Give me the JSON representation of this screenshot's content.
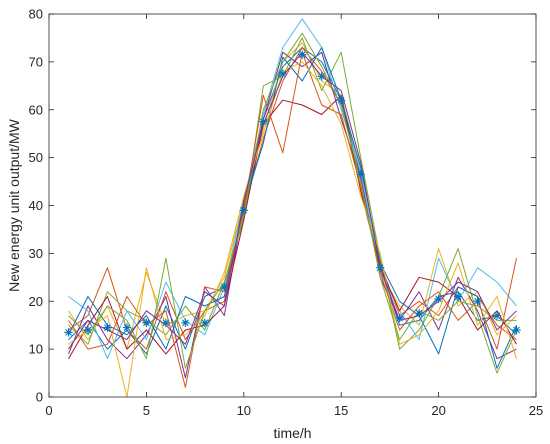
{
  "chart_data": {
    "type": "line",
    "xlabel": "time/h",
    "ylabel": "New energy unit output/MW",
    "xlim": [
      0,
      25
    ],
    "ylim": [
      0,
      80
    ],
    "xticks": [
      "0",
      "5",
      "10",
      "15",
      "20",
      "25"
    ],
    "yticks": [
      "0",
      "10",
      "20",
      "30",
      "40",
      "50",
      "60",
      "70",
      "80"
    ],
    "grid": false,
    "box": true,
    "x": [
      1,
      2,
      3,
      4,
      5,
      6,
      7,
      8,
      9,
      10,
      11,
      12,
      13,
      14,
      15,
      16,
      17,
      18,
      19,
      20,
      21,
      22,
      23,
      24
    ],
    "series": [
      {
        "color": "#0072BD",
        "values": [
          12,
          16,
          10,
          14,
          9,
          19,
          10,
          21,
          23,
          38,
          58,
          69,
          73,
          70,
          62,
          46,
          27,
          15,
          16,
          21,
          22,
          16,
          17,
          13
        ]
      },
      {
        "color": "#D95319",
        "values": [
          14,
          17,
          27,
          14,
          10,
          22,
          12,
          18,
          20,
          39,
          54,
          66,
          73,
          68,
          61,
          45,
          28,
          17,
          20,
          17,
          23,
          21,
          15,
          12
        ]
      },
      {
        "color": "#EDB120",
        "values": [
          18,
          12,
          19,
          10,
          26,
          15,
          17,
          18,
          25,
          41,
          56,
          70,
          74,
          66,
          63,
          47,
          26,
          19,
          15,
          31,
          19,
          22,
          13,
          17
        ]
      },
      {
        "color": "#7E2F8E",
        "values": [
          9,
          19,
          12,
          8,
          13,
          21,
          4,
          23,
          17,
          40,
          58,
          72,
          69,
          72,
          58,
          46,
          25,
          16,
          22,
          14,
          25,
          18,
          8,
          10
        ]
      },
      {
        "color": "#77AC30",
        "values": [
          15,
          11,
          22,
          18,
          16,
          13,
          19,
          14,
          24,
          37,
          65,
          67,
          75,
          64,
          72,
          50,
          29,
          10,
          14,
          21,
          31,
          17,
          5,
          14
        ]
      },
      {
        "color": "#4DBEEE",
        "values": [
          21,
          18,
          8,
          18,
          12,
          24,
          16,
          13,
          23,
          41,
          59,
          73,
          79,
          73,
          60,
          47,
          26,
          18,
          12,
          29,
          20,
          27,
          24,
          19
        ]
      },
      {
        "color": "#A2142F",
        "values": [
          8,
          15,
          21,
          10,
          14,
          9,
          14,
          15,
          19,
          37,
          57,
          62,
          61,
          59,
          63,
          43,
          27,
          18,
          25,
          24,
          21,
          14,
          18,
          11
        ]
      },
      {
        "color": "#0072BD",
        "values": [
          13,
          21,
          15,
          13,
          17,
          10,
          21,
          19,
          21,
          40,
          53,
          71,
          66,
          73,
          62,
          48,
          28,
          20,
          17,
          9,
          23,
          21,
          6,
          15
        ]
      },
      {
        "color": "#D95319",
        "values": [
          16,
          10,
          11,
          21,
          15,
          18,
          2,
          23,
          22,
          39,
          63,
          51,
          72,
          61,
          59,
          44,
          26,
          14,
          19,
          22,
          16,
          20,
          10,
          29
        ]
      },
      {
        "color": "#EDB120",
        "values": [
          11,
          14,
          17,
          0,
          27,
          12,
          13,
          17,
          26,
          42,
          55,
          68,
          70,
          65,
          57,
          42,
          30,
          11,
          13,
          18,
          28,
          15,
          21,
          8
        ]
      },
      {
        "color": "#77AC30",
        "values": [
          17,
          13,
          19,
          16,
          8,
          29,
          6,
          18,
          24,
          38,
          60,
          70,
          76,
          69,
          61,
          45,
          25,
          12,
          18,
          16,
          20,
          19,
          16,
          16
        ]
      },
      {
        "color": "#7E2F8E",
        "values": [
          10,
          16,
          14,
          12,
          18,
          15,
          11,
          22,
          19,
          41,
          57,
          67,
          72,
          67,
          64,
          49,
          27,
          16,
          17,
          20,
          24,
          22,
          14,
          18
        ]
      }
    ],
    "markers": {
      "symbol": "*",
      "color": "#0072BD",
      "values": [
        13.5,
        14,
        14.5,
        14.5,
        15.5,
        15.5,
        15.5,
        15.5,
        23,
        39,
        57.5,
        67.5,
        71.5,
        67,
        62,
        46.5,
        27,
        16.5,
        17.5,
        20.5,
        21,
        20,
        17,
        14
      ]
    }
  }
}
